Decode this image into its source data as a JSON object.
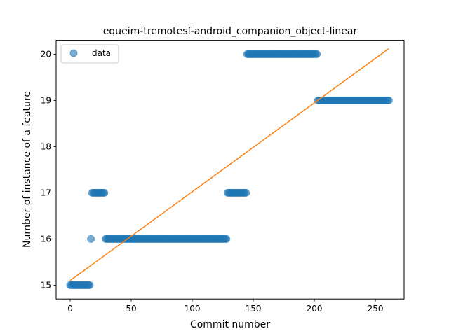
{
  "chart_data": {
    "type": "scatter",
    "title": "equeim-tremotesf-android_companion_object-linear",
    "xlabel": "Commit number",
    "ylabel": "Number of instance of a feature",
    "xlim": [
      -11.5,
      273.5
    ],
    "ylim": [
      14.7,
      20.3
    ],
    "xticks": [
      0,
      50,
      100,
      150,
      200,
      250
    ],
    "yticks": [
      15,
      16,
      17,
      18,
      19,
      20
    ],
    "grid": false,
    "legend_position": "top-left",
    "series": [
      {
        "name": "data",
        "kind": "scatter",
        "color": "#1f77b4",
        "segments": [
          {
            "x_start": 0,
            "x_end": 16,
            "y": 15
          },
          {
            "x_start": 17,
            "x_end": 17,
            "y": 16
          },
          {
            "x_start": 18,
            "x_end": 28,
            "y": 17
          },
          {
            "x_start": 29,
            "x_end": 128,
            "y": 16
          },
          {
            "x_start": 129,
            "x_end": 144,
            "y": 17
          },
          {
            "x_start": 145,
            "x_end": 202,
            "y": 20
          },
          {
            "x_start": 203,
            "x_end": 261,
            "y": 19
          }
        ]
      },
      {
        "name": "",
        "kind": "line",
        "color": "#ff7f0e",
        "x": [
          0,
          261
        ],
        "y": [
          15.1,
          20.12
        ]
      }
    ]
  }
}
